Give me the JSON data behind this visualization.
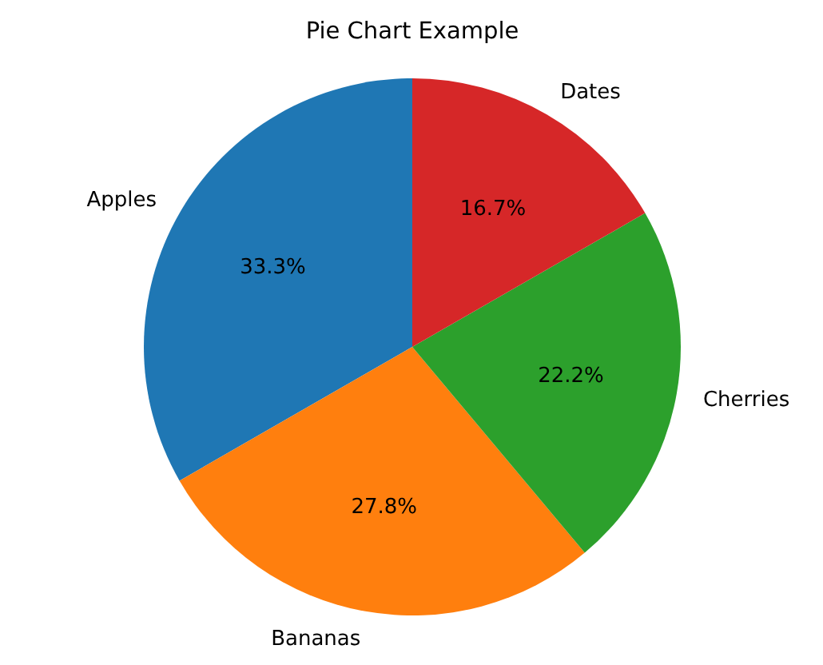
{
  "chart_data": {
    "type": "pie",
    "title": "Pie Chart Example",
    "categories": [
      "Apples",
      "Bananas",
      "Cherries",
      "Dates"
    ],
    "values": [
      33.3,
      27.8,
      22.2,
      16.7
    ],
    "colors": [
      "#1f77b4",
      "#ff7f0e",
      "#2ca02c",
      "#d62728"
    ],
    "value_labels": [
      "33.3%",
      "27.8%",
      "22.2%",
      "16.7%"
    ],
    "legend": false
  }
}
